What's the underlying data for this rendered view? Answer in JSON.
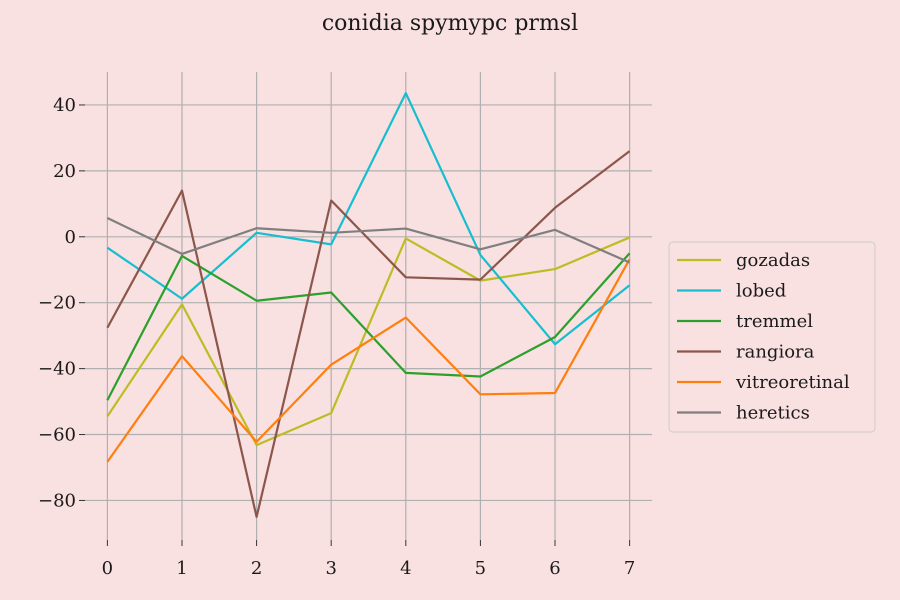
{
  "chart_data": {
    "type": "line",
    "title": "conidia spymypc prmsl",
    "xlabel": "",
    "ylabel": "",
    "x": [
      0,
      1,
      2,
      3,
      4,
      5,
      6,
      7
    ],
    "xlim": [
      -0.3,
      7.3
    ],
    "ylim": [
      -92,
      50
    ],
    "xticks": [
      0,
      1,
      2,
      3,
      4,
      5,
      6,
      7
    ],
    "yticks": [
      40,
      20,
      0,
      -20,
      -40,
      -60,
      -80
    ],
    "ytick_labels": [
      "40",
      "20",
      "0",
      "−20",
      "−40",
      "−60",
      "−80"
    ],
    "grid": true,
    "legend_position": "center-right",
    "series": [
      {
        "name": "gozadas",
        "color": "#bcbd22",
        "values": [
          -54.5,
          -20.5,
          -63.2,
          -53.5,
          -0.5,
          -13.3,
          -9.8,
          -0.2
        ]
      },
      {
        "name": "lobed",
        "color": "#17becf",
        "values": [
          -3.3,
          -18.8,
          1.2,
          -2.3,
          43.6,
          -5.5,
          -32.6,
          -14.7
        ]
      },
      {
        "name": "tremmel",
        "color": "#2ca02c",
        "values": [
          -49.6,
          -5.8,
          -19.4,
          -16.9,
          -41.3,
          -42.4,
          -30.4,
          -5.0
        ]
      },
      {
        "name": "rangiora",
        "color": "#8c564b",
        "values": [
          -27.6,
          14.0,
          -85.0,
          11.0,
          -12.3,
          -13.0,
          8.8,
          26.0
        ]
      },
      {
        "name": "vitreoretinal",
        "color": "#ff7f0e",
        "values": [
          -68.3,
          -36.2,
          -62.2,
          -38.8,
          -24.5,
          -47.8,
          -47.4,
          -6.8
        ]
      },
      {
        "name": "heretics",
        "color": "#7f7f7f",
        "values": [
          5.7,
          -5.2,
          2.6,
          1.2,
          2.5,
          -3.8,
          2.1,
          -7.8
        ]
      }
    ]
  }
}
